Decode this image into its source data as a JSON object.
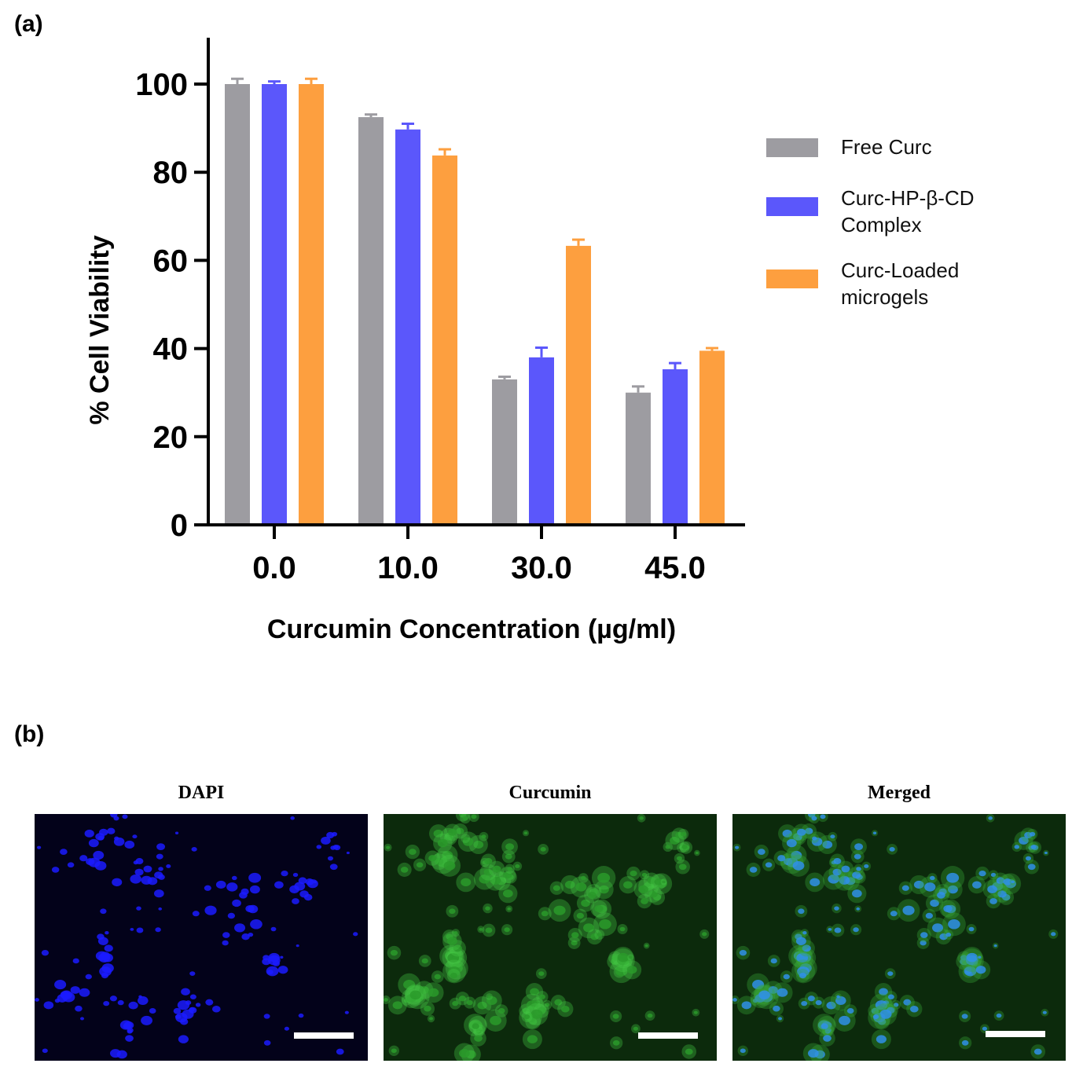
{
  "panels": {
    "a_label": "(a)",
    "b_label": "(b)"
  },
  "chart_data": {
    "type": "bar",
    "title": "",
    "xlabel": "Curcumin Concentration (µg/ml)",
    "ylabel": "% Cell Viability",
    "ylim": [
      0,
      110
    ],
    "yticks": [
      "0",
      "20",
      "40",
      "60",
      "80",
      "100"
    ],
    "categories": [
      "0.0",
      "10.0",
      "30.0",
      "45.0"
    ],
    "series": [
      {
        "name": "Free Curc",
        "color": "#9d9ca1",
        "values": [
          100,
          92.5,
          33,
          30
        ],
        "errors": [
          1.2,
          0.6,
          0.6,
          1.4
        ]
      },
      {
        "name": "Curc-HP-β-CD Complex",
        "color": "#5b57fb",
        "values": [
          100,
          89.7,
          38,
          35.3
        ],
        "errors": [
          0.6,
          1.3,
          2.2,
          1.4
        ]
      },
      {
        "name": "Curc-Loaded microgels",
        "color": "#fd9f3f",
        "values": [
          100,
          83.8,
          63.3,
          39.5
        ],
        "errors": [
          1.2,
          1.4,
          1.4,
          0.6
        ]
      }
    ],
    "legend": [
      {
        "line1": "Free Curc",
        "line2": ""
      },
      {
        "line1": "Curc-HP-β-CD",
        "line2": "Complex"
      },
      {
        "line1": "Curc-Loaded",
        "line2": "microgels"
      }
    ],
    "legend_position": "right"
  },
  "microscopy": {
    "titles": [
      "DAPI",
      "Curcumin",
      "Merged"
    ],
    "channels": [
      "blue",
      "green",
      "merged"
    ]
  }
}
